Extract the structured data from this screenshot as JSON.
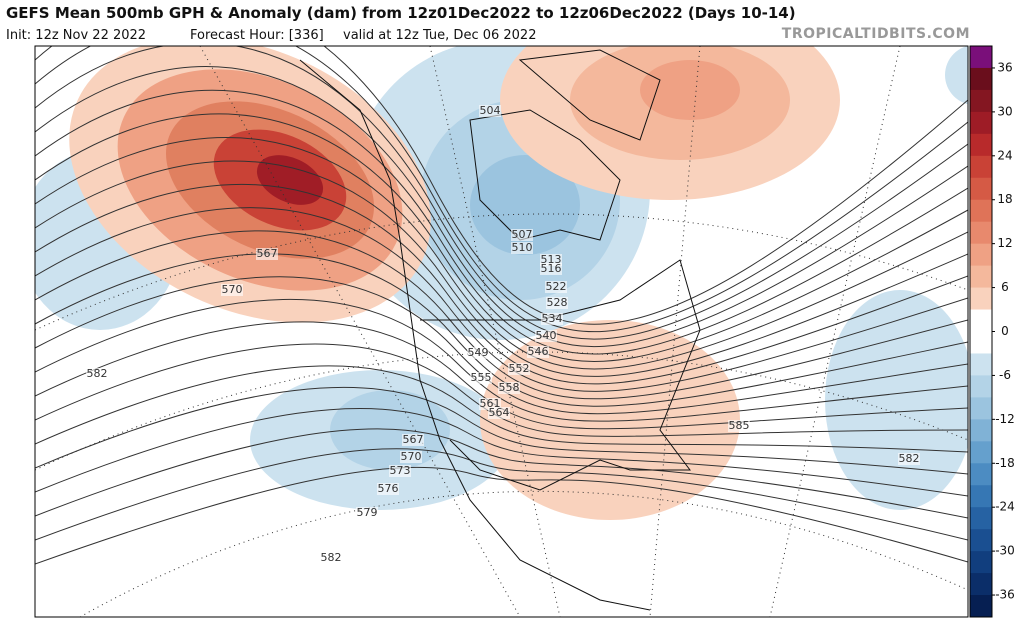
{
  "header": {
    "title": "GEFS Mean 500mb GPH & Anomaly (dam) from 12z01Dec2022 to 12z06Dec2022 (Days 10-14)",
    "init": "Init: 12z Nov 22 2022",
    "forecast_hour": "Forecast Hour: [336]",
    "valid": "valid at 12z Tue, Dec 06 2022",
    "site": "TROPICALTIDBITS.COM"
  },
  "contour_labels": [
    "504",
    "507",
    "510",
    "513",
    "516",
    "522",
    "528",
    "534",
    "540",
    "546",
    "549",
    "552",
    "555",
    "558",
    "561",
    "564",
    "567",
    "570",
    "582",
    "567",
    "570",
    "573",
    "576",
    "579",
    "582",
    "585",
    "582"
  ],
  "colorbar": {
    "ticks": [
      36,
      30,
      24,
      18,
      12,
      6,
      0,
      -6,
      -12,
      -18,
      -24,
      -30,
      -36
    ],
    "colors": [
      "#7a0f7a",
      "#6a0e1c",
      "#841621",
      "#9e1c26",
      "#b82a2b",
      "#c94236",
      "#d55a45",
      "#df7358",
      "#e8896d",
      "#efa184",
      "#f4b89c",
      "#f9d2bd",
      "#ffffff",
      "#ffffff",
      "#cce2ef",
      "#b3d3e7",
      "#9bc4df",
      "#80b2d6",
      "#65a0cd",
      "#4c8cc2",
      "#3677b4",
      "#2662a3",
      "#1a4f91",
      "#113e7e",
      "#0b2e69",
      "#061f52"
    ]
  }
}
